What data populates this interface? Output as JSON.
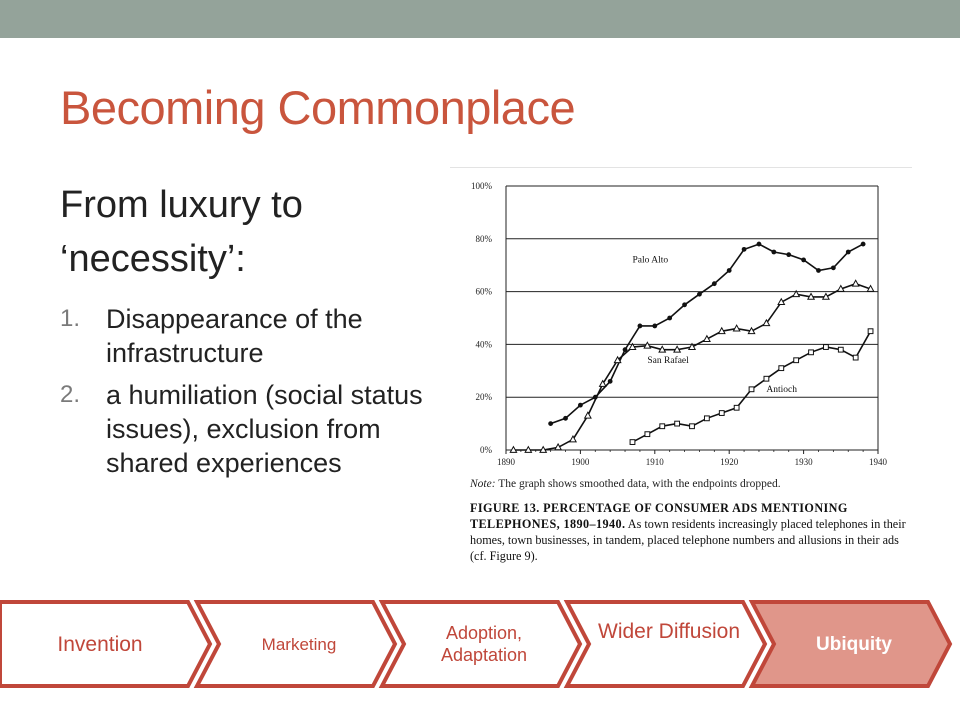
{
  "slide": {
    "title": "Becoming Commonplace",
    "lead": "From luxury to ‘necessity’:",
    "points": [
      {
        "num": "1.",
        "text": "Disappearance of the infrastructure"
      },
      {
        "num": "2.",
        "text": "a humiliation (social status issues), exclusion from shared experiences"
      }
    ]
  },
  "figure": {
    "note_label": "Note:",
    "note_text": " The graph shows smoothed data, with the endpoints dropped.",
    "caption_head": "FIGURE 13. PERCENTAGE OF CONSUMER ADS MENTIONING TELEPHONES, 1890–1940.",
    "caption_text": " As town residents increasingly placed telephones in their homes, town businesses, in tandem, placed telephone numbers and allusions in their ads (cf. Figure 9)."
  },
  "chart_data": {
    "type": "line",
    "title": "",
    "xlabel": "",
    "ylabel": "",
    "xlim": [
      1890,
      1940
    ],
    "ylim": [
      0,
      100
    ],
    "x_ticks": [
      1890,
      1900,
      1910,
      1920,
      1930,
      1940
    ],
    "x_tick_labels": [
      "1890",
      "1900",
      "1910",
      "1920",
      "1930",
      "1940"
    ],
    "y_ticks": [
      0,
      20,
      40,
      60,
      80,
      100
    ],
    "y_tick_labels": [
      "0%",
      "20%",
      "40%",
      "60%",
      "80%",
      "100%"
    ],
    "grid_y": true,
    "series": [
      {
        "name": "Palo Alto",
        "marker": "dot",
        "x": [
          1896,
          1898,
          1900,
          1902,
          1904,
          1906,
          1908,
          1910,
          1912,
          1914,
          1916,
          1918,
          1920,
          1922,
          1924,
          1926,
          1928,
          1930,
          1932,
          1934,
          1936,
          1938
        ],
        "y": [
          10,
          12,
          17,
          20,
          26,
          38,
          47,
          47,
          50,
          55,
          59,
          63,
          68,
          76,
          78,
          75,
          74,
          72,
          68,
          69,
          75,
          78
        ]
      },
      {
        "name": "San Rafael",
        "marker": "triangle",
        "x": [
          1891,
          1893,
          1895,
          1897,
          1899,
          1901,
          1903,
          1905,
          1907,
          1909,
          1911,
          1913,
          1915,
          1917,
          1919,
          1921,
          1923,
          1925,
          1927,
          1929,
          1931,
          1933,
          1935,
          1937,
          1939
        ],
        "y": [
          0,
          0,
          0,
          1,
          4,
          13,
          25,
          34,
          39,
          39.5,
          38,
          38,
          39,
          42,
          45,
          46,
          45,
          48,
          56,
          59,
          58,
          58,
          61,
          63,
          61
        ]
      },
      {
        "name": "Antioch",
        "marker": "square",
        "x": [
          1907,
          1909,
          1911,
          1913,
          1915,
          1917,
          1919,
          1921,
          1923,
          1925,
          1927,
          1929,
          1931,
          1933,
          1935,
          1937,
          1939
        ],
        "y": [
          3,
          6,
          9,
          10,
          9,
          12,
          14,
          16,
          23,
          27,
          31,
          34,
          37,
          39,
          38,
          35,
          45
        ]
      }
    ],
    "series_labels": [
      {
        "text": "Palo Alto",
        "x": 1907,
        "y": 71
      },
      {
        "text": "San Rafael",
        "x": 1909,
        "y": 33
      },
      {
        "text": "Antioch",
        "x": 1925,
        "y": 22
      }
    ]
  },
  "process": {
    "steps": [
      {
        "label": "Invention",
        "active": false
      },
      {
        "label": "Marketing",
        "active": false
      },
      {
        "label": "Adoption, Adaptation",
        "active": false
      },
      {
        "label": "Wider Diffusion",
        "active": false
      },
      {
        "label": "Ubiquity",
        "active": true
      }
    ]
  },
  "colors": {
    "accent": "#c9553d",
    "top_bar": "#94a39a",
    "chevron_border": "#c0473a",
    "chevron_active_fill": "#e0968a"
  }
}
